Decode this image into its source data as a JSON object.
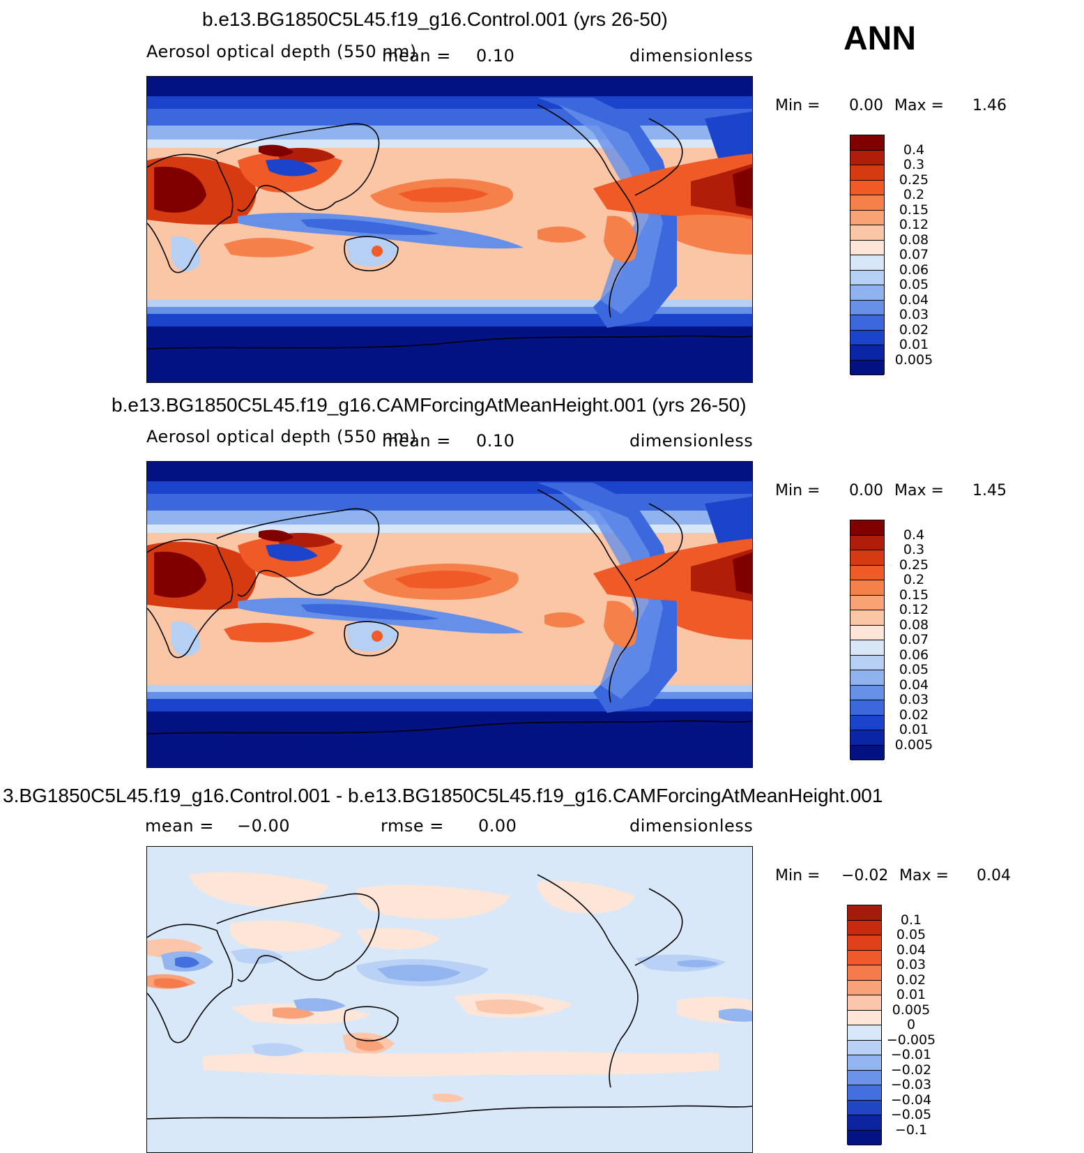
{
  "season": "ANN",
  "panels": [
    {
      "title": "b.e13.BG1850C5L45.f19_g16.Control.001 (yrs 26-50)",
      "variable": "Aerosol optical depth (550 nm)",
      "mean_label": "mean =",
      "mean_value": "0.10",
      "units": "dimensionless",
      "min_label": "Min =",
      "min_value": "0.00",
      "max_label": "Max =",
      "max_value": "1.46",
      "colorbar_labels": [
        "0.4",
        "0.3",
        "0.25",
        "0.2",
        "0.15",
        "0.12",
        "0.08",
        "0.07",
        "0.06",
        "0.05",
        "0.04",
        "0.03",
        "0.02",
        "0.01",
        "0.005"
      ],
      "colorbar_colors": [
        "#800000",
        "#b01e0a",
        "#d63a10",
        "#ef5a26",
        "#f6804a",
        "#f9a374",
        "#fbc6a6",
        "#fde6d8",
        "#d7e7f8",
        "#b6d0f4",
        "#8fb3ee",
        "#6690e8",
        "#3c68de",
        "#1a44cc",
        "#0a25a6",
        "#021283"
      ]
    },
    {
      "title": "b.e13.BG1850C5L45.f19_g16.CAMForcingAtMeanHeight.001 (yrs 26-50)",
      "variable": "Aerosol optical depth (550 nm)",
      "mean_label": "mean =",
      "mean_value": "0.10",
      "units": "dimensionless",
      "min_label": "Min =",
      "min_value": "0.00",
      "max_label": "Max =",
      "max_value": "1.45",
      "colorbar_labels": [
        "0.4",
        "0.3",
        "0.25",
        "0.2",
        "0.15",
        "0.12",
        "0.08",
        "0.07",
        "0.06",
        "0.05",
        "0.04",
        "0.03",
        "0.02",
        "0.01",
        "0.005"
      ],
      "colorbar_colors": [
        "#800000",
        "#b01e0a",
        "#d63a10",
        "#ef5a26",
        "#f6804a",
        "#f9a374",
        "#fbc6a6",
        "#fde6d8",
        "#d7e7f8",
        "#b6d0f4",
        "#8fb3ee",
        "#6690e8",
        "#3c68de",
        "#1a44cc",
        "#0a25a6",
        "#021283"
      ]
    },
    {
      "title": "3.BG1850C5L45.f19_g16.Control.001 - b.e13.BG1850C5L45.f19_g16.CAMForcingAtMeanHeight.001",
      "mean_label": "mean =",
      "mean_value": "−0.00",
      "rmse_label": "rmse =",
      "rmse_value": "0.00",
      "units": "dimensionless",
      "min_label": "Min =",
      "min_value": "−0.02",
      "max_label": "Max =",
      "max_value": "0.04",
      "colorbar_labels": [
        "0.1",
        "0.05",
        "0.04",
        "0.03",
        "0.02",
        "0.01",
        "0.005",
        "0",
        "−0.005",
        "−0.01",
        "−0.02",
        "−0.03",
        "−0.04",
        "−0.05",
        "−0.1"
      ],
      "colorbar_colors": [
        "#a41a0c",
        "#c82a10",
        "#e0401a",
        "#f05a2a",
        "#f57b4c",
        "#f9a27a",
        "#fcc6aa",
        "#fde6d8",
        "#d9e8f9",
        "#b8d1f5",
        "#93b5ef",
        "#6b93e8",
        "#4270df",
        "#2046c6",
        "#0a24a0",
        "#031383"
      ]
    }
  ],
  "colors": {
    "deep_blue": "#021283",
    "mid_blue": "#3c68de",
    "light_blue": "#b6d0f4",
    "neutral_peach": "#fbc6a6",
    "orange": "#ef5a26",
    "dark_red": "#800000"
  }
}
